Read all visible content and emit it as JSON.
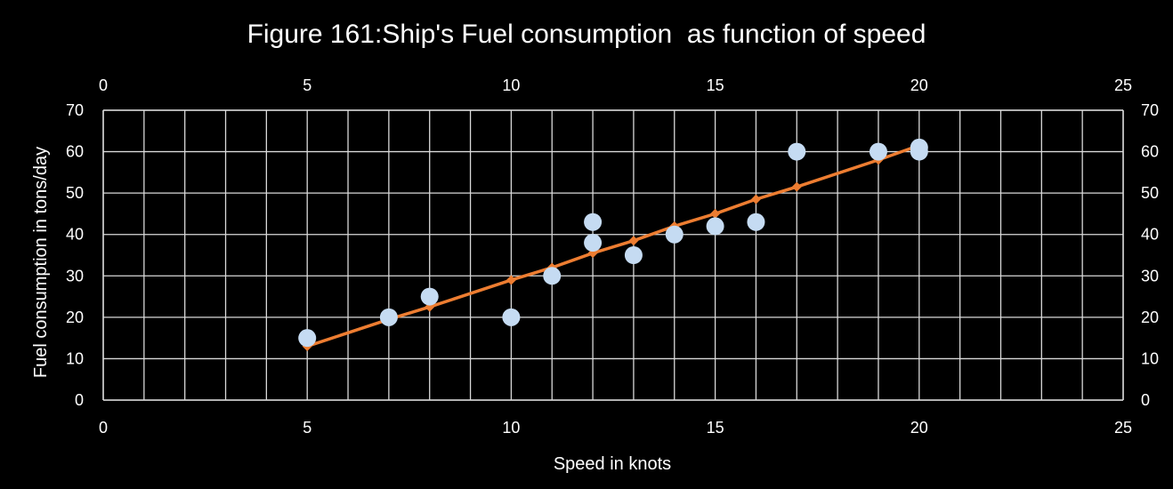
{
  "chart_data": {
    "type": "scatter",
    "title": "Figure 161:Ship's Fuel consumption  as function of speed",
    "xlabel": "Speed in knots",
    "ylabel": "Fuel consumption in tons/day",
    "xlim": [
      0,
      25
    ],
    "ylim": [
      0,
      70
    ],
    "x_ticks": [
      "0",
      "5",
      "10",
      "15",
      "20",
      "25"
    ],
    "y_ticks": [
      "0",
      "10",
      "20",
      "30",
      "40",
      "50",
      "60",
      "70"
    ],
    "secondary_x_axis_top": true,
    "secondary_y_axis_right": true,
    "grid": true,
    "legend": "none",
    "series": [
      {
        "kind": "scatter",
        "color": "#c5dbf2",
        "points": [
          [
            5,
            15
          ],
          [
            7,
            20
          ],
          [
            8,
            25
          ],
          [
            10,
            20
          ],
          [
            11,
            30
          ],
          [
            12,
            43
          ],
          [
            12,
            38
          ],
          [
            13,
            35
          ],
          [
            14,
            40
          ],
          [
            15,
            42
          ],
          [
            16,
            43
          ],
          [
            17,
            60
          ],
          [
            19,
            60
          ],
          [
            20,
            61
          ],
          [
            20,
            60
          ]
        ]
      },
      {
        "kind": "line",
        "color": "#ed7d31",
        "points": [
          [
            5,
            13
          ],
          [
            7,
            19.5
          ],
          [
            8,
            22.5
          ],
          [
            10,
            29
          ],
          [
            11,
            32
          ],
          [
            12,
            35.5
          ],
          [
            13,
            38.5
          ],
          [
            14,
            42
          ],
          [
            15,
            45
          ],
          [
            16,
            48.5
          ],
          [
            17,
            51.5
          ],
          [
            19,
            58
          ],
          [
            20,
            61.5
          ]
        ]
      }
    ]
  }
}
